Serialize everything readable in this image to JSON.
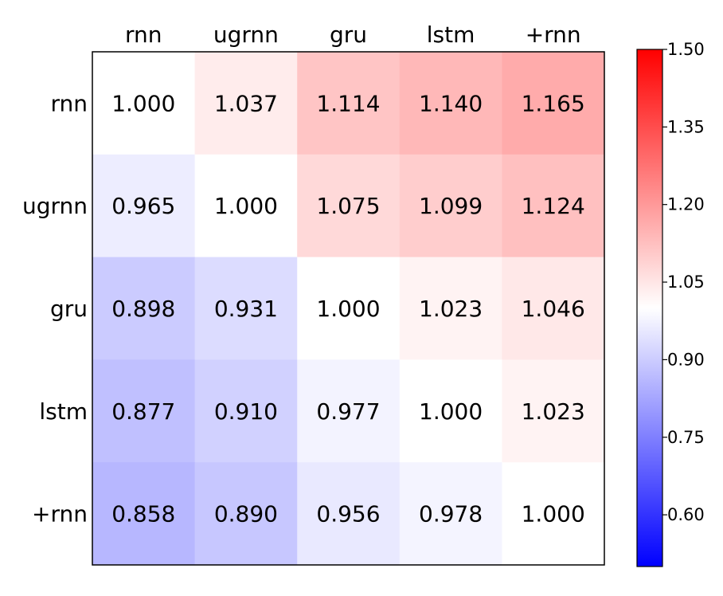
{
  "chart_data": {
    "type": "heatmap",
    "title": "",
    "xlabel": "",
    "ylabel": "",
    "columns": [
      "rnn",
      "ugrnn",
      "gru",
      "lstm",
      "+rnn"
    ],
    "rows": [
      "rnn",
      "ugrnn",
      "gru",
      "lstm",
      "+rnn"
    ],
    "values": [
      [
        1.0,
        1.037,
        1.114,
        1.14,
        1.165
      ],
      [
        0.965,
        1.0,
        1.075,
        1.099,
        1.124
      ],
      [
        0.898,
        0.931,
        1.0,
        1.023,
        1.046
      ],
      [
        0.877,
        0.91,
        0.977,
        1.0,
        1.023
      ],
      [
        0.858,
        0.89,
        0.956,
        0.978,
        1.0
      ]
    ],
    "value_labels": [
      [
        "1.000",
        "1.037",
        "1.114",
        "1.140",
        "1.165"
      ],
      [
        "0.965",
        "1.000",
        "1.075",
        "1.099",
        "1.124"
      ],
      [
        "0.898",
        "0.931",
        "1.000",
        "1.023",
        "1.046"
      ],
      [
        "0.877",
        "0.910",
        "0.977",
        "1.000",
        "1.023"
      ],
      [
        "0.858",
        "0.890",
        "0.956",
        "0.978",
        "1.000"
      ]
    ],
    "colormap": "bwr",
    "colorbar": {
      "vmin": 0.5,
      "vmax": 1.5,
      "ticks": [
        1.5,
        1.35,
        1.2,
        1.05,
        0.9,
        0.75,
        0.6
      ],
      "tick_labels": [
        "1.50",
        "1.35",
        "1.20",
        "1.05",
        "0.90",
        "0.75",
        "0.60"
      ],
      "colors": {
        "low": "#0000ff",
        "mid": "#ffffff",
        "high": "#ff0000"
      }
    },
    "x_ticks_position": "top",
    "grid": false
  }
}
